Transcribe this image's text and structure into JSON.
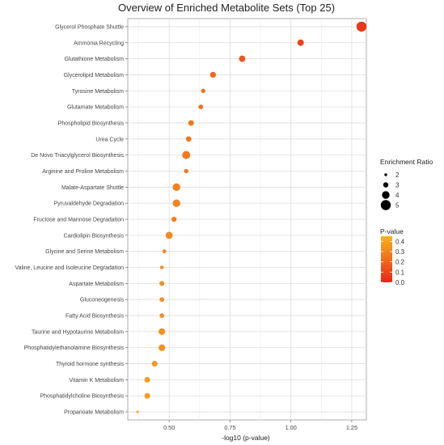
{
  "chart_data": {
    "type": "scatter",
    "title": "Overview of Enriched Metabolite Sets (Top 25)",
    "xlabel": "-log10 (p-value)",
    "ylabel": "",
    "xlim": [
      0.33,
      1.31
    ],
    "x_ticks": [
      0.5,
      0.75,
      1.0,
      1.25
    ],
    "x_tick_labels": [
      "0.50",
      "0.75",
      "1.00",
      "1.25"
    ],
    "grid": true,
    "legend_position": "right",
    "categories": [
      "Glycerol Phosphate Shuttle",
      "Ammonia Recycling",
      "Glutathione Metabolism",
      "Glycerolipid Metabolism",
      "Tyrosine Metabolism",
      "Glutamate Metabolism",
      "Phospholipid Biosynthesis",
      "Urea Cycle",
      "De Novo Triacylglycerol Biosynthesis",
      "Arginine and Proline Metabolism",
      "Malate-Aspartate Shuttle",
      "Pyruvaldehyde Degradation",
      "Fructose and Mannose Degradation",
      "Cardiolipin Biosynthesis",
      "Glycine and Serine Metabolism",
      "Valine, Leucine and Isoleucine Degradation",
      "Aspartate Metabolism",
      "Gluconeogenesis",
      "Fatty Acid Biosynthesis",
      "Taurine and Hypotaurine Metabolism",
      "Phosphatidylethanolamine Biosynthesis",
      "Thyroid hormone synthesis",
      "Vitamin K Metabolism",
      "Phosphatidylcholine Biosynthesis",
      "Propanoate Metabolism"
    ],
    "x": [
      1.29,
      1.04,
      0.8,
      0.68,
      0.64,
      0.63,
      0.59,
      0.58,
      0.57,
      0.57,
      0.53,
      0.53,
      0.52,
      0.5,
      0.48,
      0.47,
      0.47,
      0.47,
      0.47,
      0.47,
      0.47,
      0.44,
      0.41,
      0.41,
      0.37
    ],
    "enrichment_ratio": [
      5.0,
      3.5,
      3.5,
      3.3,
      2.6,
      2.8,
      3.2,
      3.1,
      4.2,
      2.7,
      4.0,
      4.0,
      3.0,
      3.8,
      2.5,
      2.4,
      2.9,
      2.8,
      2.8,
      3.6,
      3.6,
      3.2,
      3.2,
      3.2,
      1.9
    ],
    "p_value": [
      0.051,
      0.091,
      0.16,
      0.21,
      0.23,
      0.24,
      0.26,
      0.26,
      0.27,
      0.27,
      0.29,
      0.3,
      0.3,
      0.32,
      0.33,
      0.34,
      0.34,
      0.34,
      0.34,
      0.34,
      0.34,
      0.36,
      0.39,
      0.39,
      0.43
    ],
    "legend_size": {
      "title": "Enrichment Ratio",
      "values": [
        2,
        3,
        4,
        5
      ],
      "labels": [
        "2",
        "3",
        "4",
        "5"
      ]
    },
    "legend_color": {
      "title": "P-value",
      "ticks": [
        0.4,
        0.3,
        0.2,
        0.1,
        0.0
      ],
      "labels": [
        "0.4",
        "0.3",
        "0.2",
        "0.1",
        "0.0"
      ],
      "range": [
        0.0,
        0.45
      ],
      "low_color": "#E8261A",
      "high_color": "#F8B21E"
    }
  }
}
